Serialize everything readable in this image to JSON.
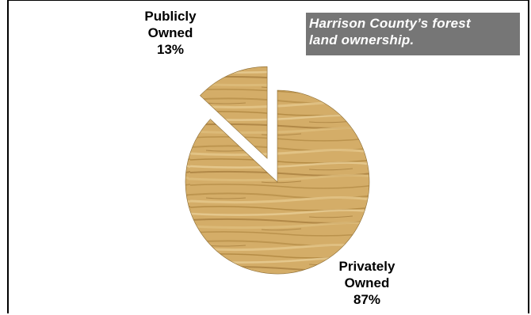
{
  "chart_data": {
    "type": "pie",
    "title_lines": [
      "Harrison County’s forest",
      "land ownership."
    ],
    "slices": [
      {
        "name_lines": [
          "Publicly",
          "Owned"
        ],
        "percent_label": "13%",
        "value": 13,
        "exploded": true
      },
      {
        "name_lines": [
          "Privately",
          "Owned"
        ],
        "percent_label": "87%",
        "value": 87,
        "exploded": false
      }
    ],
    "fill_texture": "wood-grain",
    "colors": {
      "wood_light": "#d9b574",
      "wood_mid": "#c49a52",
      "wood_dark": "#9c7430",
      "title_bg": "#767676"
    }
  }
}
